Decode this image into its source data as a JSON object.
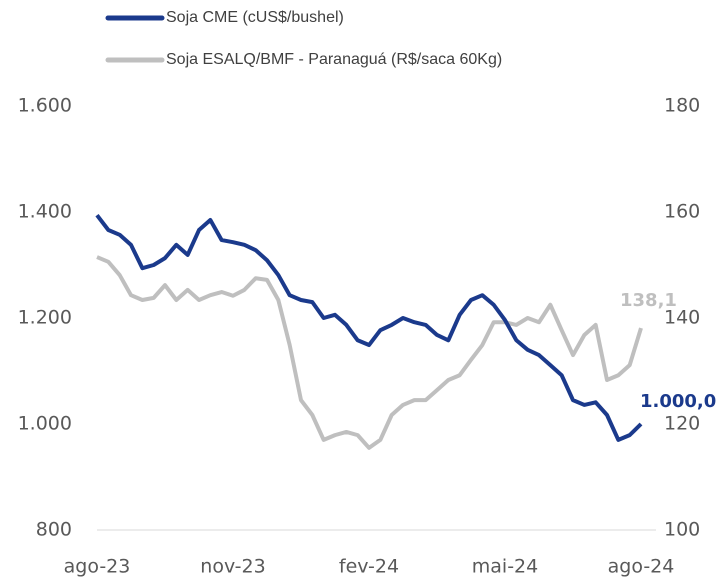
{
  "chart_data": {
    "type": "line",
    "x": [
      0,
      0.25,
      0.5,
      0.75,
      1,
      1.25,
      1.5,
      1.75,
      2,
      2.25,
      2.5,
      2.75,
      3,
      3.25,
      3.5,
      3.75,
      4,
      4.25,
      4.5,
      4.75,
      5,
      5.25,
      5.5,
      5.75,
      6,
      6.25,
      6.5,
      6.75,
      7,
      7.25,
      7.5,
      7.75,
      8,
      8.25,
      8.5,
      8.75,
      9,
      9.25,
      9.5,
      9.75,
      10,
      10.25,
      10.5,
      10.75,
      11,
      11.25,
      11.5,
      11.75,
      12
    ],
    "xlim": [
      0,
      12
    ],
    "xticks": [
      {
        "value": 0,
        "label": "ago-23"
      },
      {
        "value": 3,
        "label": "nov-23"
      },
      {
        "value": 6,
        "label": "fev-24"
      },
      {
        "value": 9,
        "label": "mai-24"
      },
      {
        "value": 12,
        "label": "ago-24"
      }
    ],
    "ylim": [
      800,
      1600
    ],
    "yticks": [
      {
        "value": 800,
        "label": "800"
      },
      {
        "value": 1000,
        "label": "1.000"
      },
      {
        "value": 1200,
        "label": "1.200"
      },
      {
        "value": 1400,
        "label": "1.400"
      },
      {
        "value": 1600,
        "label": "1.600"
      }
    ],
    "y2lim": [
      100,
      180
    ],
    "y2ticks": [
      100,
      120,
      140,
      160,
      180
    ],
    "series": [
      {
        "name": "Soja CME (cUS$/bushel)",
        "color": "#1b3a8c",
        "values": [
          1394,
          1366,
          1357,
          1338,
          1294,
          1300,
          1313,
          1338,
          1319,
          1366,
          1385,
          1347,
          1343,
          1338,
          1328,
          1309,
          1281,
          1243,
          1234,
          1230,
          1200,
          1206,
          1187,
          1158,
          1149,
          1177,
          1187,
          1200,
          1192,
          1187,
          1168,
          1158,
          1206,
          1234,
          1243,
          1225,
          1196,
          1158,
          1140,
          1130,
          1111,
          1092,
          1045,
          1036,
          1041,
          1017,
          970,
          979,
          1000
        ],
        "value_labels": [
          null,
          null,
          null,
          null,
          null,
          null,
          null,
          null,
          null,
          null,
          null,
          null,
          null,
          null,
          null,
          null,
          null,
          null,
          null,
          null,
          null,
          null,
          null,
          null,
          null,
          null,
          null,
          null,
          null,
          null,
          null,
          null,
          null,
          null,
          null,
          null,
          null,
          null,
          null,
          null,
          null,
          null,
          null,
          null,
          null,
          null,
          null,
          null,
          "1.000,0"
        ]
      },
      {
        "name": "Soja ESALQ/BMF - Paranaguá (R$/saca 60Kg)",
        "color": "#bfbfbf",
        "axis": "y2",
        "values": [
          151.5,
          150.6,
          148.1,
          144.3,
          143.4,
          143.8,
          146.2,
          143.4,
          145.3,
          143.4,
          144.3,
          144.9,
          144.2,
          145.3,
          147.5,
          147.2,
          143.4,
          134.9,
          124.5,
          121.7,
          117.0,
          117.9,
          118.5,
          117.9,
          115.5,
          117.0,
          121.7,
          123.6,
          124.5,
          124.5,
          126.4,
          128.3,
          129.2,
          132.1,
          134.9,
          139.2,
          139.2,
          138.7,
          140.0,
          139.2,
          142.5,
          137.7,
          133.0,
          136.8,
          138.7,
          128.3,
          129.2,
          131.1,
          138.1
        ],
        "value_labels": [
          null,
          null,
          null,
          null,
          null,
          null,
          null,
          null,
          null,
          null,
          null,
          null,
          null,
          null,
          null,
          null,
          null,
          null,
          null,
          null,
          null,
          null,
          null,
          null,
          null,
          null,
          null,
          null,
          null,
          null,
          null,
          null,
          null,
          null,
          null,
          null,
          null,
          null,
          null,
          null,
          null,
          null,
          null,
          null,
          null,
          null,
          null,
          null,
          "138,1"
        ]
      }
    ]
  }
}
